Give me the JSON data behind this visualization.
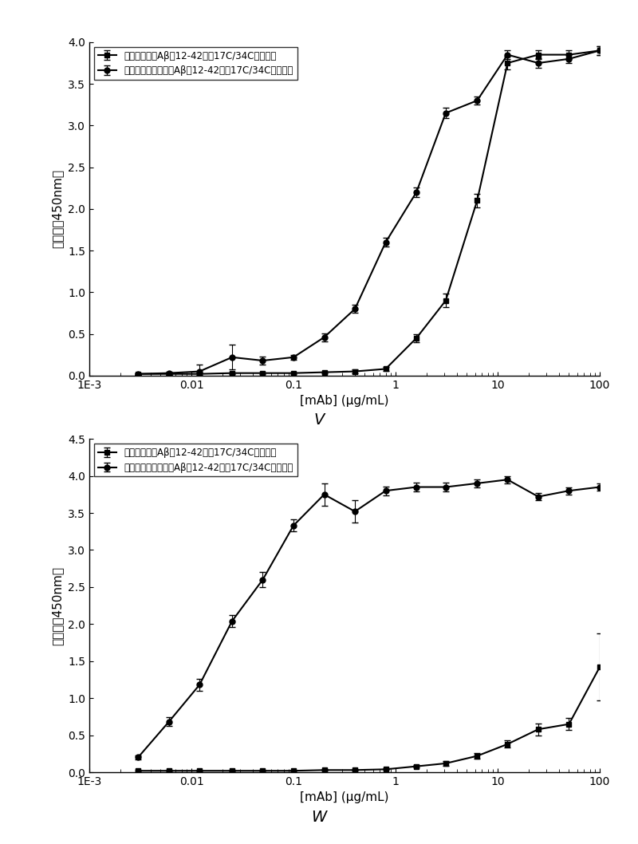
{
  "chart_v": {
    "title": "V",
    "xlabel": "[mAb] (μg/mL)",
    "ylabel": "吸光度（450nm）",
    "ylim": [
      0,
      4.0
    ],
    "yticks": [
      0.0,
      0.5,
      1.0,
      1.5,
      2.0,
      2.5,
      3.0,
      3.5,
      4.0
    ],
    "legend1": "二硫键稳定的Aβ（12-42）（17C/34C）富集物",
    "legend2": "截短的二硫键稳定的Aβ（12-42）（17C/34C）富集物",
    "series1_x": [
      0.003,
      0.006,
      0.012,
      0.025,
      0.05,
      0.1,
      0.2,
      0.4,
      0.8,
      1.6,
      3.1,
      6.3,
      12.5,
      25,
      50,
      100
    ],
    "series1_y": [
      0.02,
      0.02,
      0.02,
      0.03,
      0.03,
      0.03,
      0.04,
      0.05,
      0.08,
      0.45,
      0.9,
      2.1,
      3.75,
      3.85,
      3.85,
      3.9
    ],
    "series1_err": [
      0.01,
      0.01,
      0.01,
      0.01,
      0.01,
      0.01,
      0.01,
      0.02,
      0.02,
      0.05,
      0.08,
      0.08,
      0.08,
      0.05,
      0.05,
      0.05
    ],
    "series2_x": [
      0.003,
      0.006,
      0.012,
      0.025,
      0.05,
      0.1,
      0.2,
      0.4,
      0.8,
      1.6,
      3.1,
      6.3,
      12.5,
      25,
      50,
      100
    ],
    "series2_y": [
      0.02,
      0.03,
      0.05,
      0.22,
      0.18,
      0.22,
      0.46,
      0.8,
      1.6,
      2.2,
      3.15,
      3.3,
      3.85,
      3.75,
      3.8,
      3.9
    ],
    "series2_err": [
      0.01,
      0.02,
      0.08,
      0.15,
      0.05,
      0.03,
      0.05,
      0.05,
      0.05,
      0.06,
      0.06,
      0.05,
      0.05,
      0.06,
      0.05,
      0.05
    ]
  },
  "chart_w": {
    "title": "W",
    "xlabel": "[mAb] (μg/mL)",
    "ylabel": "吸光度（450nm）",
    "ylim": [
      0,
      4.5
    ],
    "yticks": [
      0.0,
      0.5,
      1.0,
      1.5,
      2.0,
      2.5,
      3.0,
      3.5,
      4.0,
      4.5
    ],
    "legend1": "二硫键稳定的Aβ（12-42）（17C/34C）富集物",
    "legend2": "截短的二硫键稳定的Aβ（12-42）（17C/34C）富集物",
    "series1_x": [
      0.003,
      0.006,
      0.012,
      0.025,
      0.05,
      0.1,
      0.2,
      0.4,
      0.8,
      1.6,
      3.1,
      6.3,
      12.5,
      25,
      50,
      100
    ],
    "series1_y": [
      0.02,
      0.02,
      0.02,
      0.02,
      0.02,
      0.02,
      0.03,
      0.03,
      0.04,
      0.08,
      0.12,
      0.22,
      0.38,
      0.58,
      0.65,
      1.42
    ],
    "series1_err": [
      0.01,
      0.01,
      0.01,
      0.01,
      0.01,
      0.01,
      0.01,
      0.01,
      0.01,
      0.02,
      0.03,
      0.04,
      0.05,
      0.08,
      0.08,
      0.45
    ],
    "series2_x": [
      0.003,
      0.006,
      0.012,
      0.025,
      0.05,
      0.1,
      0.2,
      0.4,
      0.8,
      1.6,
      3.1,
      6.3,
      12.5,
      25,
      50,
      100
    ],
    "series2_y": [
      0.2,
      0.68,
      1.18,
      2.04,
      2.6,
      3.33,
      3.75,
      3.52,
      3.8,
      3.85,
      3.85,
      3.9,
      3.95,
      3.72,
      3.8,
      3.85
    ],
    "series2_err": [
      0.03,
      0.06,
      0.08,
      0.08,
      0.1,
      0.08,
      0.15,
      0.15,
      0.06,
      0.06,
      0.06,
      0.05,
      0.05,
      0.05,
      0.05,
      0.05
    ]
  },
  "color": "#000000",
  "linewidth": 1.5,
  "markersize": 5,
  "capsize": 3,
  "font_size_label": 11,
  "font_size_tick": 10,
  "font_size_legend": 8.5,
  "font_size_title": 14,
  "background_color": "#ffffff"
}
